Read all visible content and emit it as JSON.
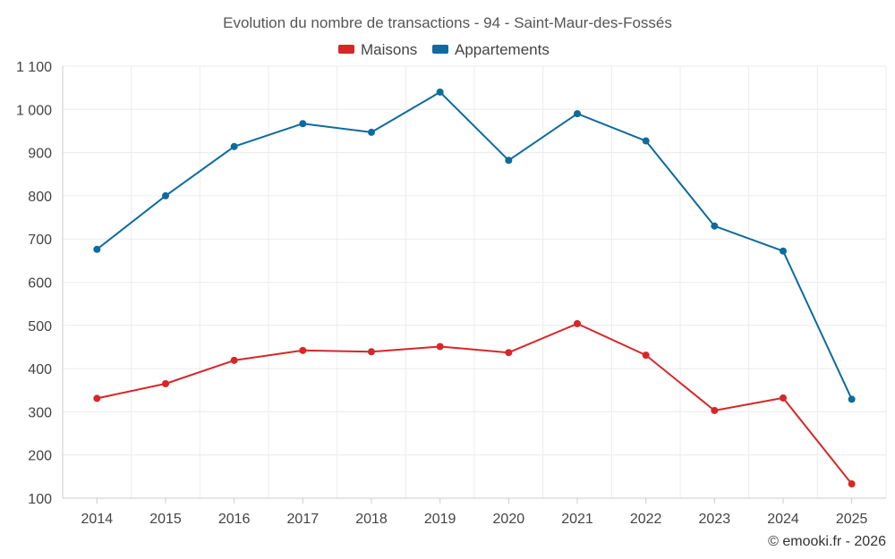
{
  "chart_data": {
    "type": "line",
    "title": "Evolution du nombre de transactions - 94 - Saint-Maur-des-Fossés",
    "categories": [
      "2014",
      "2015",
      "2016",
      "2017",
      "2018",
      "2019",
      "2020",
      "2021",
      "2022",
      "2023",
      "2024",
      "2025"
    ],
    "series": [
      {
        "name": "Maisons",
        "color": "#d62728",
        "values": [
          331,
          365,
          419,
          442,
          439,
          451,
          437,
          504,
          431,
          303,
          332,
          133
        ]
      },
      {
        "name": "Appartements",
        "color": "#0d6b9e",
        "values": [
          676,
          800,
          914,
          967,
          947,
          1040,
          882,
          990,
          927,
          730,
          672,
          329
        ]
      }
    ],
    "yticks": [
      100,
      200,
      300,
      400,
      500,
      600,
      700,
      800,
      900,
      1000,
      1100
    ],
    "ytick_labels": [
      "100",
      "200",
      "300",
      "400",
      "500",
      "600",
      "700",
      "800",
      "900",
      "1 000",
      "1 100"
    ],
    "ylim": [
      100,
      1100
    ],
    "xlabel": "",
    "ylabel": "",
    "legend_position": "top-center",
    "grid": true
  },
  "credit": "© emooki.fr - 2026"
}
